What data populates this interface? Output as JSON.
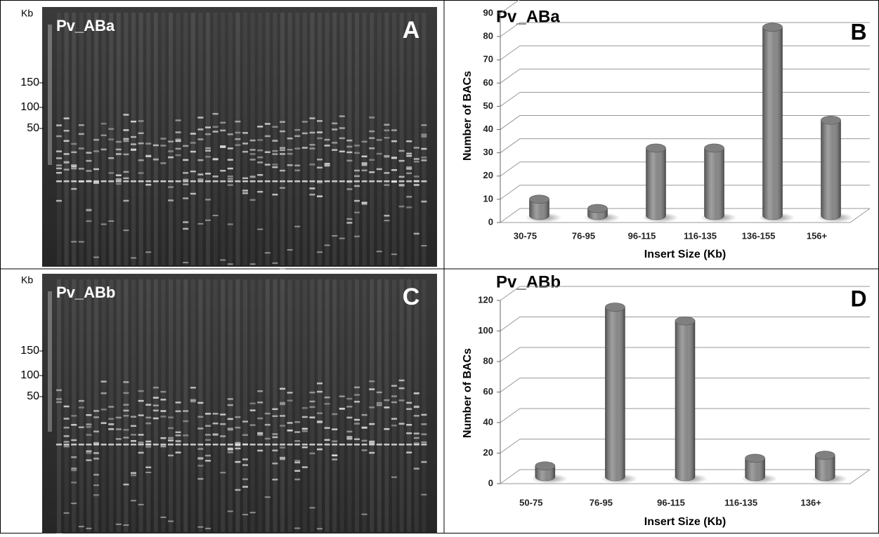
{
  "gels": [
    {
      "unit": "Kb",
      "library": "Pv_ABa",
      "panel": "A",
      "markers": [
        150,
        100,
        50
      ]
    },
    {
      "unit": "Kb",
      "library": "Pv_ABb",
      "panel": "C",
      "markers": [
        150,
        100,
        50
      ]
    }
  ],
  "chart_data": [
    {
      "type": "bar3d",
      "title": "Pv_ABa",
      "panel": "B",
      "x_label": "Insert Size (Kb)",
      "y_label": "Number of BACs",
      "categories": [
        "30-75",
        "76-95",
        "96-115",
        "116-135",
        "136-155",
        "156+"
      ],
      "values": [
        7,
        3,
        29,
        29,
        81,
        41
      ],
      "color": "#808080",
      "ylim": [
        0,
        90
      ],
      "yticks": [
        0,
        10,
        20,
        30,
        40,
        50,
        60,
        70,
        80,
        90
      ],
      "grid": true
    },
    {
      "type": "bar3d",
      "title": "Pv_ABb",
      "panel": "D",
      "x_label": "Insert Size (Kb)",
      "y_label": "Number of BACs",
      "categories": [
        "50-75",
        "76-95",
        "96-115",
        "116-135",
        "136+"
      ],
      "values": [
        7,
        111,
        102,
        12,
        14
      ],
      "color": "#808080",
      "ylim": [
        0,
        120
      ],
      "yticks": [
        0,
        20,
        40,
        60,
        80,
        100,
        120
      ],
      "grid": true
    }
  ]
}
